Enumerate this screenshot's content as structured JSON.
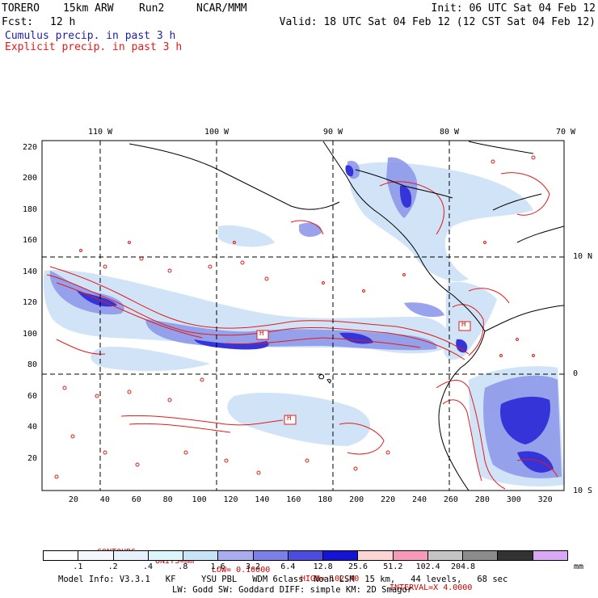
{
  "header": {
    "model": "TORERO",
    "resolution": "15km ARW",
    "run": "Run2",
    "org": "NCAR/MMM",
    "init": "Init: 06 UTC Sat 04 Feb 12",
    "fcst_label": "Fcst:",
    "fcst_value": "12 h",
    "valid": "Valid: 18 UTC Sat 04 Feb 12 (12 CST Sat 04 Feb 12)",
    "field1": "Cumulus precip. in past 3 h",
    "field2": "Explicit precip. in past 3 h"
  },
  "map": {
    "lon_labels": [
      "110 W",
      "100 W",
      "90 W",
      "80 W",
      "70 W"
    ],
    "lat_labels": [
      "10 N",
      "0",
      "10 S"
    ],
    "grid_x_labels": [
      "20",
      "40",
      "60",
      "80",
      "100",
      "120",
      "140",
      "160",
      "180",
      "200",
      "220",
      "240",
      "260",
      "280",
      "300",
      "320"
    ],
    "grid_y_labels": [
      "220",
      "200",
      "180",
      "160",
      "140",
      "120",
      "100",
      "80",
      "60",
      "40",
      "20"
    ],
    "grid_x_range": [
      0,
      332
    ],
    "grid_y_range": [
      0,
      225
    ],
    "high_markers": [
      "H",
      "H",
      "H"
    ],
    "colors": {
      "cumulus_light": "#cfe3f7",
      "cumulus_mid": "#8f99ea",
      "cumulus_dark": "#3434d9",
      "explicit": "#e21b1b",
      "coast": "#000000"
    }
  },
  "contour_info": {
    "contours": "CONTOURS:",
    "units": "UNITS=mm",
    "low": "LOW= 0.10000",
    "high": "HIGH= 102.40",
    "interval": "INTERVAL=X 4.0000"
  },
  "colorbar": {
    "colors": [
      "#ffffff",
      "#f4f8fe",
      "#e6f1fc",
      "#daf6fb",
      "#c7e3f7",
      "#a9adf0",
      "#7b7fe8",
      "#4c4cdf",
      "#1414d4",
      "#fcd4d4",
      "#f79ab9",
      "#c4c4c4",
      "#8c8c8c",
      "#333333",
      "#d8a8f4"
    ],
    "labels": [
      ".1",
      ".2",
      ".4",
      ".8",
      "1.6",
      "3.2",
      "6.4",
      "12.8",
      "25.6",
      "51.2",
      "102.4",
      "204.8"
    ],
    "unit": "mm"
  },
  "footer": {
    "line1": "Model Info: V3.3.1   KF     YSU PBL   WDM 6class  Noah LSM  15 km,   44 levels,   68 sec",
    "line2": "LW: Godd SW: Goddard DIFF: simple KM: 2D Smagor"
  }
}
